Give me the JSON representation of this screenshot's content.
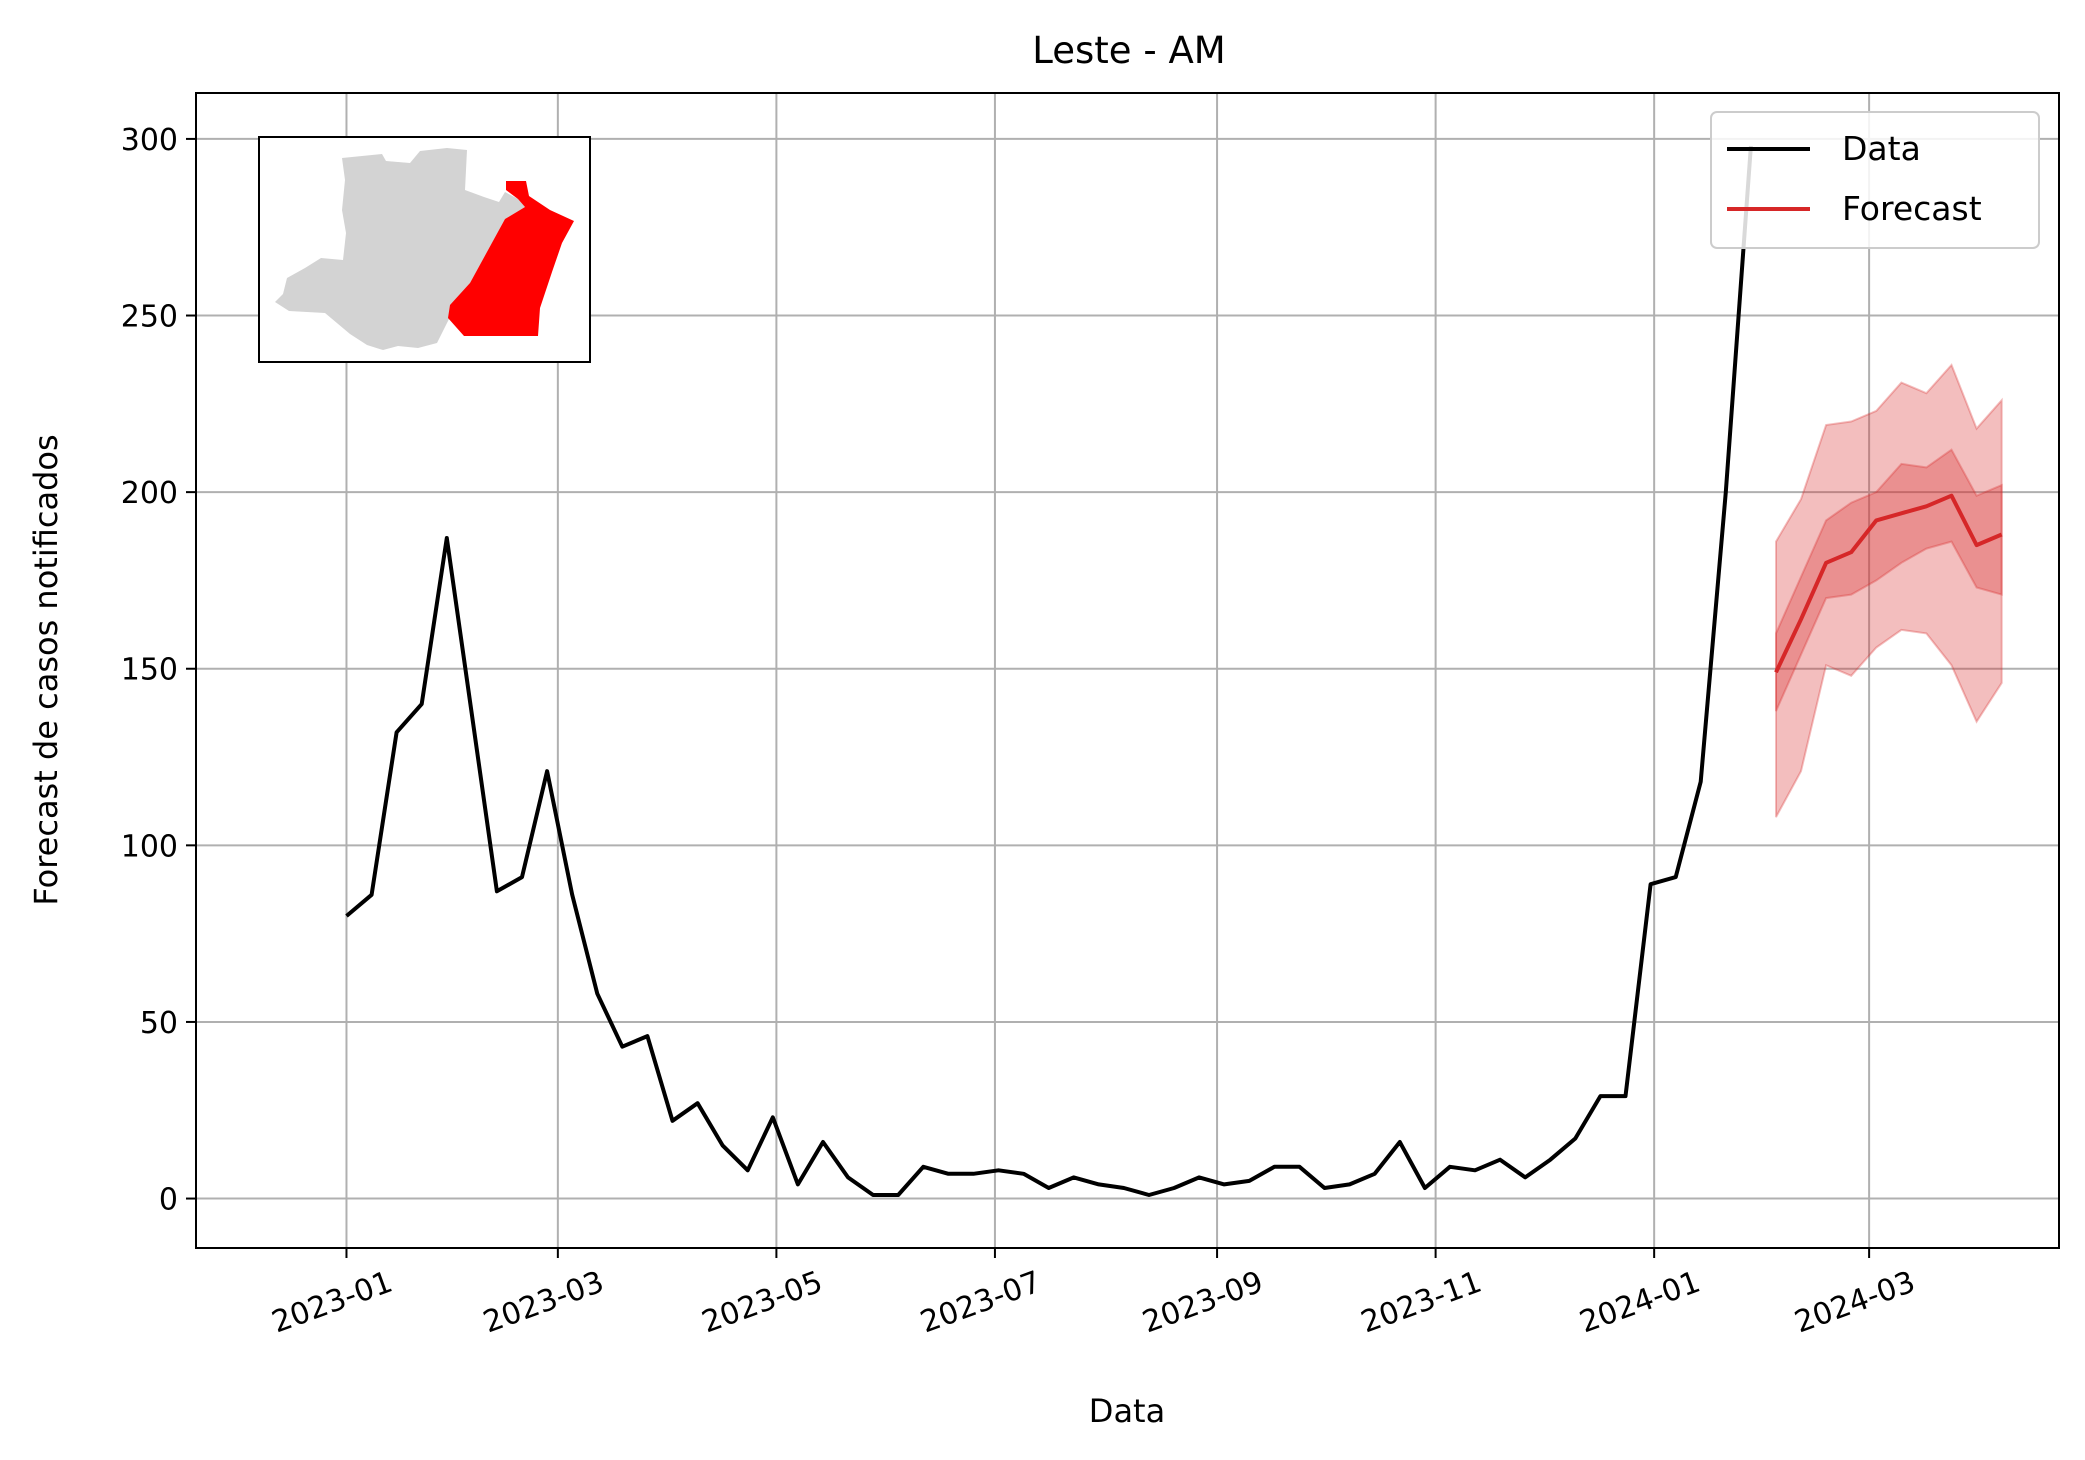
{
  "chart_data": {
    "type": "line",
    "title": "Leste - AM",
    "xlabel": "Data",
    "ylabel": "Forecast de casos notificados",
    "xlim": [
      "2022-11-20",
      "2024-04-23"
    ],
    "ylim": [
      -14,
      313
    ],
    "x_ticks": [
      {
        "date": "2023-01-01",
        "label": "2023-01"
      },
      {
        "date": "2023-03-01",
        "label": "2023-03"
      },
      {
        "date": "2023-05-01",
        "label": "2023-05"
      },
      {
        "date": "2023-07-01",
        "label": "2023-07"
      },
      {
        "date": "2023-09-01",
        "label": "2023-09"
      },
      {
        "date": "2023-11-01",
        "label": "2023-11"
      },
      {
        "date": "2024-01-01",
        "label": "2024-01"
      },
      {
        "date": "2024-03-01",
        "label": "2024-03"
      }
    ],
    "y_ticks": [
      0,
      50,
      100,
      150,
      200,
      250,
      300
    ],
    "grid": true,
    "legend_position": "top-right",
    "series": [
      {
        "name": "Data",
        "color": "#000000",
        "x": [
          "2023-01-01",
          "2023-01-08",
          "2023-01-15",
          "2023-01-22",
          "2023-01-29",
          "2023-02-05",
          "2023-02-12",
          "2023-02-19",
          "2023-02-26",
          "2023-03-05",
          "2023-03-12",
          "2023-03-19",
          "2023-03-26",
          "2023-04-02",
          "2023-04-09",
          "2023-04-16",
          "2023-04-23",
          "2023-04-30",
          "2023-05-07",
          "2023-05-14",
          "2023-05-21",
          "2023-05-28",
          "2023-06-04",
          "2023-06-11",
          "2023-06-18",
          "2023-06-25",
          "2023-07-02",
          "2023-07-09",
          "2023-07-16",
          "2023-07-23",
          "2023-07-30",
          "2023-08-06",
          "2023-08-13",
          "2023-08-20",
          "2023-08-27",
          "2023-09-03",
          "2023-09-10",
          "2023-09-17",
          "2023-09-24",
          "2023-10-01",
          "2023-10-08",
          "2023-10-15",
          "2023-10-22",
          "2023-10-29",
          "2023-11-05",
          "2023-11-12",
          "2023-11-19",
          "2023-11-26",
          "2023-12-03",
          "2023-12-10",
          "2023-12-17",
          "2023-12-24",
          "2023-12-31",
          "2024-01-07",
          "2024-01-14",
          "2024-01-21",
          "2024-01-28"
        ],
        "values": [
          80,
          86,
          132,
          140,
          187,
          137,
          87,
          91,
          121,
          86,
          58,
          43,
          46,
          22,
          27,
          15,
          8,
          23,
          4,
          16,
          6,
          1,
          1,
          9,
          7,
          7,
          8,
          7,
          3,
          6,
          4,
          3,
          1,
          3,
          6,
          4,
          5,
          9,
          9,
          3,
          4,
          7,
          16,
          3,
          9,
          8,
          11,
          6,
          11,
          17,
          29,
          29,
          89,
          91,
          118,
          200,
          298
        ]
      },
      {
        "name": "Forecast",
        "color": "#d62728",
        "x": [
          "2024-02-04",
          "2024-02-11",
          "2024-02-18",
          "2024-02-25",
          "2024-03-03",
          "2024-03-10",
          "2024-03-17",
          "2024-03-24",
          "2024-03-31",
          "2024-04-07"
        ],
        "values": [
          149,
          164,
          180,
          183,
          192,
          194,
          196,
          199,
          185,
          188
        ],
        "inner_band": {
          "lower": [
            138,
            154,
            170,
            171,
            175,
            180,
            184,
            186,
            173,
            171
          ],
          "upper": [
            160,
            176,
            192,
            197,
            200,
            208,
            207,
            212,
            199,
            202
          ]
        },
        "outer_band": {
          "lower": [
            108,
            121,
            151,
            148,
            156,
            161,
            160,
            151,
            135,
            146
          ],
          "upper": [
            186,
            198,
            219,
            220,
            223,
            231,
            228,
            236,
            218,
            226
          ]
        }
      }
    ],
    "inset_map": {
      "region_color": "#ff0000",
      "state_color": "#d3d3d3"
    }
  }
}
